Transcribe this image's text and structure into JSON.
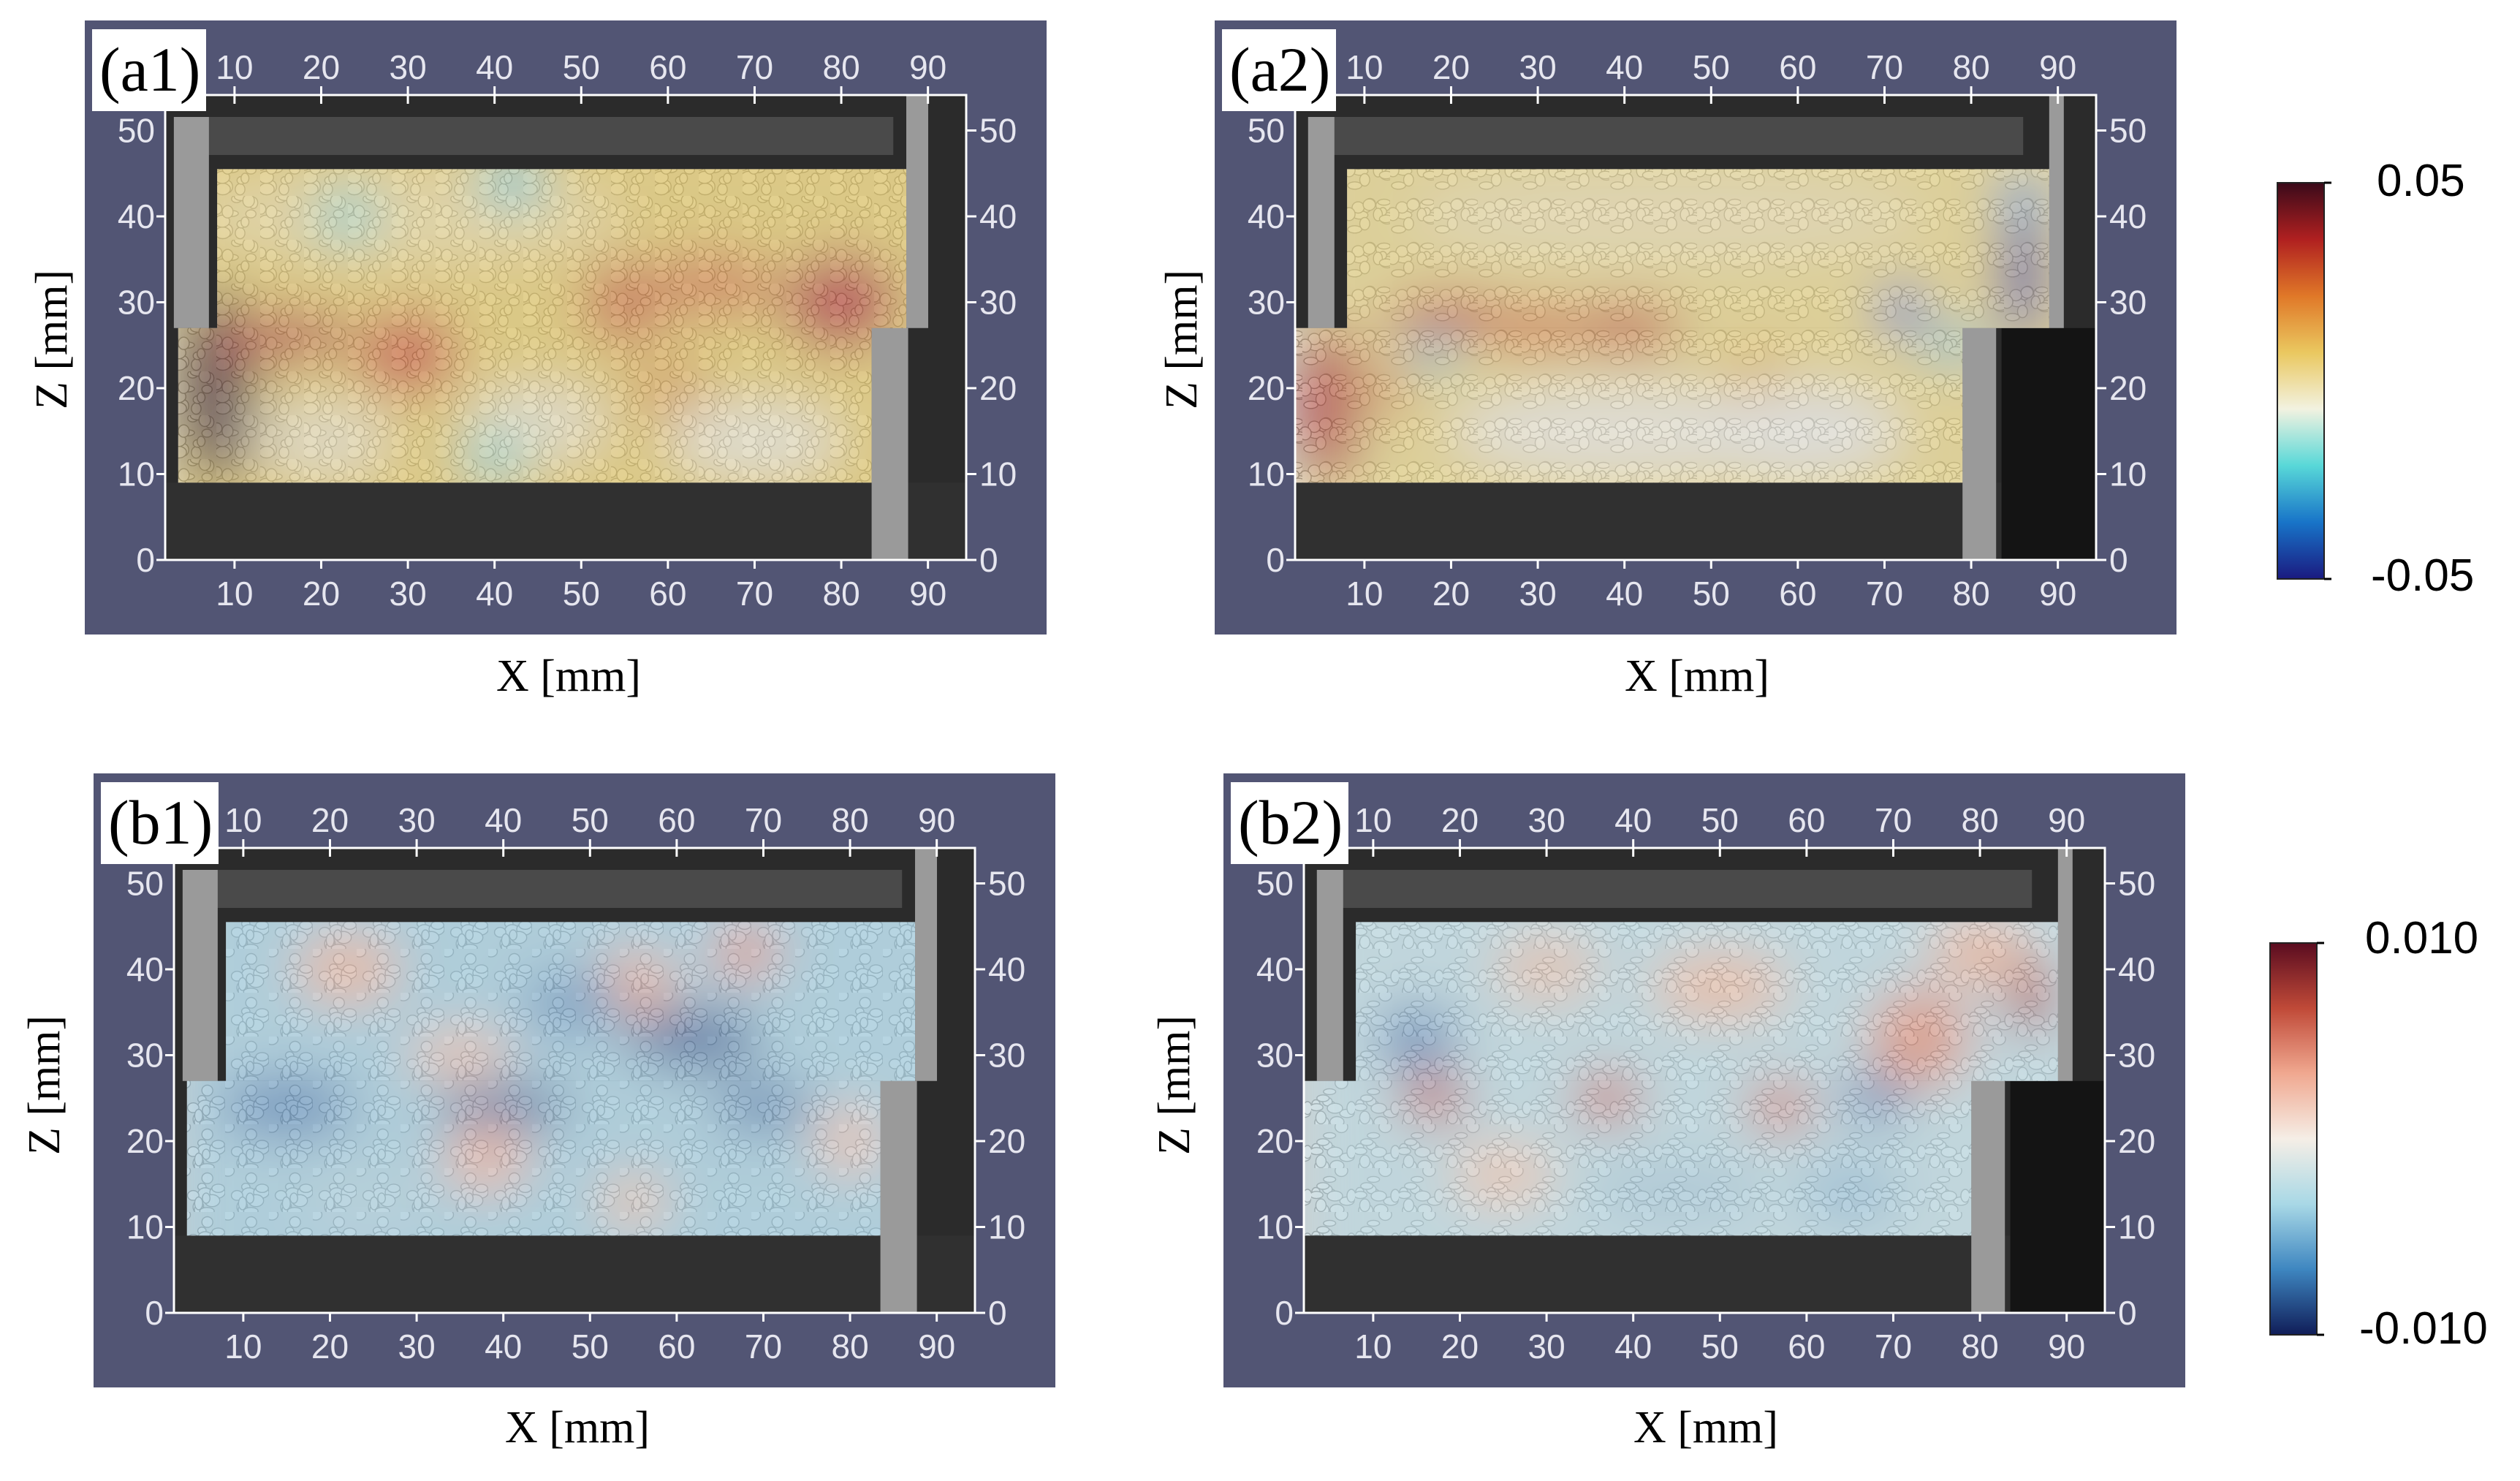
{
  "panels": [
    {
      "id": "a1",
      "label": "(a1)",
      "xlabel": "X [mm]",
      "ylabel": "Z [mm]",
      "shift": "left"
    },
    {
      "id": "a2",
      "label": "(a2)",
      "xlabel": "X [mm]",
      "ylabel": "Z [mm]",
      "shift": "right"
    },
    {
      "id": "b1",
      "label": "(b1)",
      "xlabel": "X [mm]",
      "ylabel": "Z [mm]",
      "shift": "left"
    },
    {
      "id": "b2",
      "label": "(b2)",
      "xlabel": "X [mm]",
      "ylabel": "Z [mm]",
      "shift": "right"
    }
  ],
  "x_ticks": [
    "10",
    "20",
    "30",
    "40",
    "50",
    "60",
    "70",
    "80",
    "90"
  ],
  "z_ticks_left": [
    "0",
    "10",
    "20",
    "30",
    "40"
  ],
  "z_ticks_right": [
    "0",
    "10",
    "20",
    "30",
    "40",
    "50"
  ],
  "z_top_left_tick": "50",
  "colorbars": [
    {
      "id": "a",
      "max": "0.05",
      "min": "-0.05",
      "scheme": "diverging-dark-red-yellow-cyan-blue",
      "stops": [
        "#3a0a1a",
        "#b02020",
        "#e07828",
        "#eac860",
        "#f2f2e0",
        "#58d8d8",
        "#1874c8",
        "#1a1a80"
      ]
    },
    {
      "id": "b",
      "max": "0.010",
      "min": "-0.010",
      "scheme": "RdBu",
      "stops": [
        "#5a0c20",
        "#c04a38",
        "#f0a890",
        "#f5eee6",
        "#a8d8e6",
        "#3e86c0",
        "#101d58"
      ]
    }
  ]
}
